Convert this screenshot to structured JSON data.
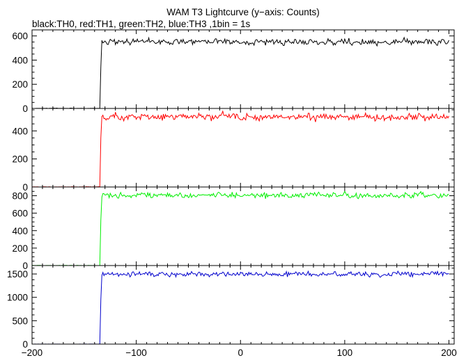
{
  "chart_data": {
    "type": "line",
    "title": "WAM T3 Lightcurve (y−axis: Counts)",
    "subtitle": "black:TH0, red:TH1, green:TH2, blue:TH3 ,1bin = 1s",
    "xlim": [
      -200,
      205
    ],
    "x_ticks": [
      -200,
      -100,
      0,
      100,
      200
    ],
    "x_tick_labels": [
      "−200",
      "−100",
      "0",
      "100",
      "200"
    ],
    "grid": false,
    "panels": [
      {
        "series_name": "TH0",
        "color": "#000000",
        "ylim": [
          0,
          650
        ],
        "y_ticks": [
          0,
          200,
          400,
          600
        ],
        "y_tick_labels": [
          "0",
          "200",
          "400",
          "600"
        ],
        "pre_level": 0,
        "onset_x": -134,
        "rise_mid": 340,
        "plateau": 550,
        "noise": 22
      },
      {
        "series_name": "TH1",
        "color": "#ff0000",
        "ylim": [
          0,
          560
        ],
        "y_ticks": [
          0,
          200,
          400
        ],
        "y_tick_labels": [
          "0",
          "200",
          "400"
        ],
        "pre_level": 0,
        "onset_x": -134,
        "rise_mid": 350,
        "plateau": 500,
        "noise": 20
      },
      {
        "series_name": "TH2",
        "color": "#00ee00",
        "ylim": [
          0,
          900
        ],
        "y_ticks": [
          0,
          200,
          400,
          600,
          800
        ],
        "y_tick_labels": [
          "0",
          "200",
          "400",
          "600",
          "800"
        ],
        "pre_level": 0,
        "onset_x": -134,
        "rise_mid": 520,
        "plateau": 805,
        "noise": 28
      },
      {
        "series_name": "TH3",
        "color": "#0000cc",
        "ylim": [
          0,
          1680
        ],
        "y_ticks": [
          0,
          500,
          1000,
          1500
        ],
        "y_tick_labels": [
          "0",
          "500",
          "1000",
          "1500"
        ],
        "pre_level": 0,
        "onset_x": -134,
        "rise_mid": 950,
        "plateau": 1495,
        "noise": 45
      }
    ]
  }
}
